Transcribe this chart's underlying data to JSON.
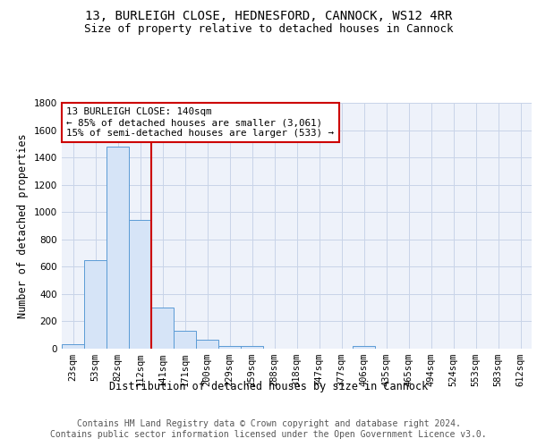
{
  "title_line1": "13, BURLEIGH CLOSE, HEDNESFORD, CANNOCK, WS12 4RR",
  "title_line2": "Size of property relative to detached houses in Cannock",
  "xlabel": "Distribution of detached houses by size in Cannock",
  "ylabel": "Number of detached properties",
  "bin_labels": [
    "23sqm",
    "53sqm",
    "82sqm",
    "112sqm",
    "141sqm",
    "171sqm",
    "200sqm",
    "229sqm",
    "259sqm",
    "288sqm",
    "318sqm",
    "347sqm",
    "377sqm",
    "406sqm",
    "435sqm",
    "465sqm",
    "494sqm",
    "524sqm",
    "553sqm",
    "583sqm",
    "612sqm"
  ],
  "bar_heights": [
    35,
    650,
    1480,
    940,
    300,
    130,
    65,
    20,
    20,
    0,
    0,
    0,
    0,
    20,
    0,
    0,
    0,
    0,
    0,
    0,
    0
  ],
  "bar_color": "#d6e4f7",
  "bar_edge_color": "#5b9bd5",
  "grid_color": "#c8d4e8",
  "background_color": "#eef2fa",
  "vline_x_index": 3.5,
  "vline_color": "#cc0000",
  "annotation_text": "13 BURLEIGH CLOSE: 140sqm\n← 85% of detached houses are smaller (3,061)\n15% of semi-detached houses are larger (533) →",
  "annotation_box_color": "#ffffff",
  "annotation_box_edgecolor": "#cc0000",
  "ylim": [
    0,
    1800
  ],
  "yticks": [
    0,
    200,
    400,
    600,
    800,
    1000,
    1200,
    1400,
    1600,
    1800
  ],
  "footer_text": "Contains HM Land Registry data © Crown copyright and database right 2024.\nContains public sector information licensed under the Open Government Licence v3.0.",
  "title_fontsize": 10,
  "subtitle_fontsize": 9,
  "xlabel_fontsize": 8.5,
  "ylabel_fontsize": 8.5,
  "annotation_fontsize": 7.8,
  "footer_fontsize": 7.0,
  "tick_fontsize": 7.5
}
